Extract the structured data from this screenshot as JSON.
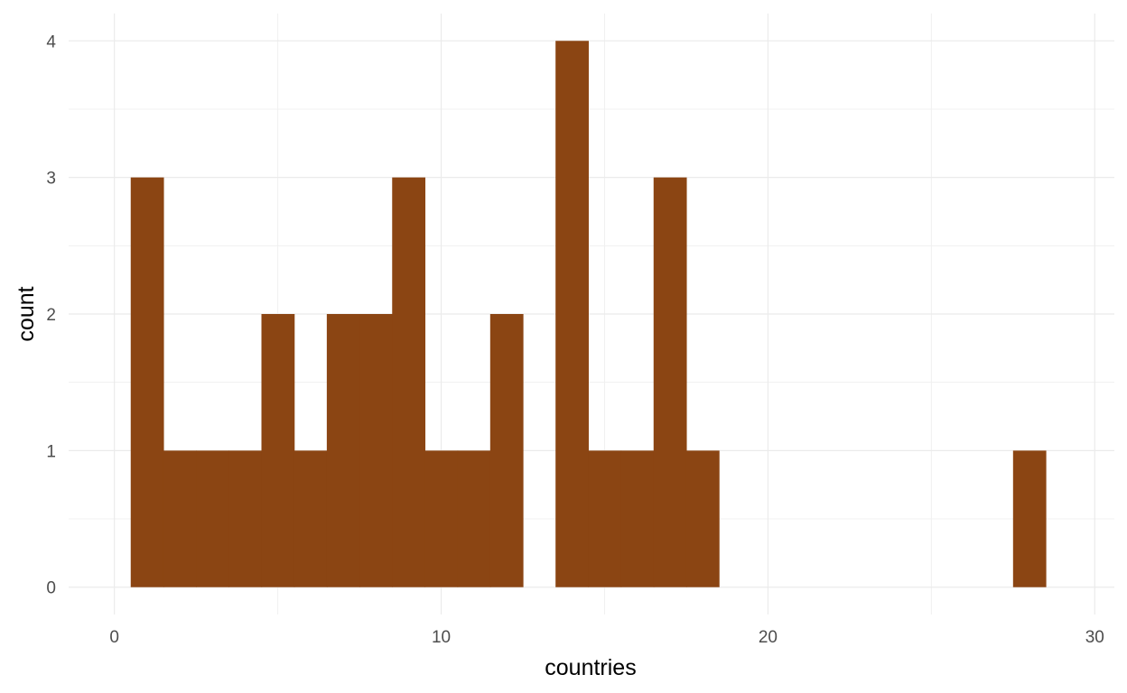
{
  "chart_data": {
    "type": "bar",
    "xlabel": "countries",
    "ylabel": "count",
    "xlim": [
      -1.4,
      30.6
    ],
    "ylim": [
      -0.2,
      4.2
    ],
    "x_ticks": [
      0,
      10,
      20,
      30
    ],
    "x_tick_labels": [
      "0",
      "10",
      "20",
      "30"
    ],
    "y_ticks": [
      0,
      1,
      2,
      3,
      4
    ],
    "y_tick_labels": [
      "0",
      "1",
      "2",
      "3",
      "4"
    ],
    "grid": true,
    "bar_color": "#8B4513",
    "bin_width": 1,
    "bins": [
      {
        "x": 1,
        "count": 3
      },
      {
        "x": 2,
        "count": 1
      },
      {
        "x": 3,
        "count": 1
      },
      {
        "x": 4,
        "count": 1
      },
      {
        "x": 5,
        "count": 2
      },
      {
        "x": 6,
        "count": 1
      },
      {
        "x": 7,
        "count": 2
      },
      {
        "x": 8,
        "count": 2
      },
      {
        "x": 9,
        "count": 3
      },
      {
        "x": 10,
        "count": 1
      },
      {
        "x": 11,
        "count": 1
      },
      {
        "x": 12,
        "count": 2
      },
      {
        "x": 13,
        "count": 0
      },
      {
        "x": 14,
        "count": 4
      },
      {
        "x": 15,
        "count": 1
      },
      {
        "x": 16,
        "count": 1
      },
      {
        "x": 17,
        "count": 3
      },
      {
        "x": 18,
        "count": 1
      },
      {
        "x": 28,
        "count": 1
      }
    ]
  }
}
